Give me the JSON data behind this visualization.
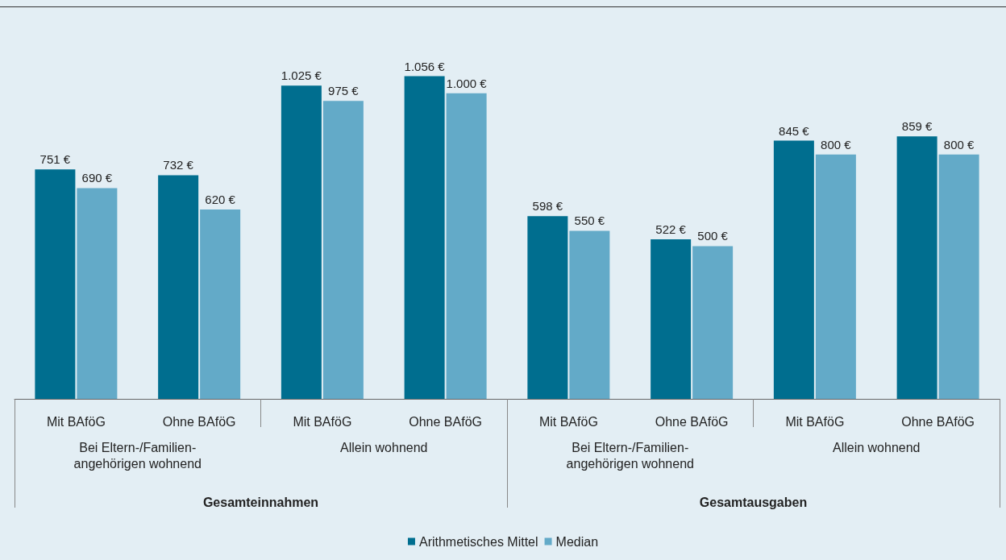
{
  "chart_data": {
    "type": "bar",
    "categories": [
      "Mit BAföG",
      "Ohne BAföG",
      "Mit BAföG",
      "Ohne BAföG",
      "Mit BAföG",
      "Ohne BAföG",
      "Mit BAföG",
      "Ohne BAföG"
    ],
    "series": [
      {
        "name": "Arithmetisches Mittel",
        "color": "#006e8f",
        "values": [
          751,
          732,
          1025,
          1056,
          598,
          522,
          845,
          859
        ],
        "value_labels": [
          "751 €",
          "732 €",
          "1.025 €",
          "1.056 €",
          "598 €",
          "522 €",
          "845 €",
          "859 €"
        ]
      },
      {
        "name": "Median",
        "color": "#63aac8",
        "values": [
          690,
          620,
          975,
          1000,
          550,
          500,
          800,
          800
        ],
        "value_labels": [
          "690 €",
          "620 €",
          "975 €",
          "1.000 €",
          "550 €",
          "500 €",
          "800 €",
          "800 €"
        ]
      }
    ],
    "annotations": [
      "Bei Eltern-/Familien-\nangehörigen wohnend",
      "Allein wohnend",
      "Bei Eltern-/Familien-\nangehörigen wohnend",
      "Allein wohnend",
      "Gesamteinnahmen",
      "Gesamtausgaben"
    ],
    "grid": false,
    "legend": "bottom"
  }
}
